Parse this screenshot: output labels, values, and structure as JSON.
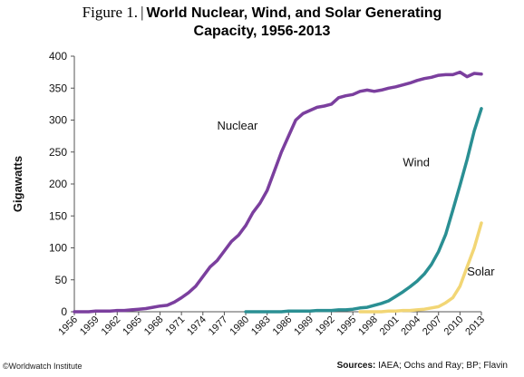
{
  "title": {
    "figure_label": "Figure 1.",
    "separator": "|",
    "line1": "World Nuclear, Wind, and Solar Generating",
    "line2": "Capacity, 1956-2013"
  },
  "footer": {
    "credit": "©Worldwatch Institute",
    "sources_label": "Sources:",
    "sources_text": "IAEA; Ochs and Ray; BP; Flavin"
  },
  "chart_data": {
    "type": "line",
    "title": "World Nuclear, Wind, and Solar Generating Capacity, 1956-2013",
    "xlabel": "",
    "ylabel": "Gigawatts",
    "xlim": [
      1956,
      2013
    ],
    "ylim": [
      0,
      400
    ],
    "y_ticks": [
      0,
      50,
      100,
      150,
      200,
      250,
      300,
      350,
      400
    ],
    "x_tick_labels": [
      "1956",
      "1959",
      "1962",
      "1965",
      "1968",
      "1971",
      "1974",
      "1977",
      "1980",
      "1983",
      "1986",
      "1989",
      "1992",
      "1995",
      "1998",
      "2001",
      "2004",
      "2007",
      "2010",
      "2013"
    ],
    "grid": false,
    "legend": "inline labels",
    "series": [
      {
        "name": "Nuclear",
        "color": "#7b3f9e",
        "x": [
          1956,
          1957,
          1958,
          1959,
          1960,
          1961,
          1962,
          1963,
          1964,
          1965,
          1966,
          1967,
          1968,
          1969,
          1970,
          1971,
          1972,
          1973,
          1974,
          1975,
          1976,
          1977,
          1978,
          1979,
          1980,
          1981,
          1982,
          1983,
          1984,
          1985,
          1986,
          1987,
          1988,
          1989,
          1990,
          1991,
          1992,
          1993,
          1994,
          1995,
          1996,
          1997,
          1998,
          1999,
          2000,
          2001,
          2002,
          2003,
          2004,
          2005,
          2006,
          2007,
          2008,
          2009,
          2010,
          2011,
          2012,
          2013
        ],
        "y": [
          0,
          0,
          0,
          1,
          1,
          1,
          2,
          2,
          3,
          4,
          5,
          7,
          9,
          10,
          15,
          22,
          30,
          40,
          55,
          70,
          80,
          95,
          110,
          120,
          135,
          155,
          170,
          190,
          220,
          250,
          275,
          300,
          310,
          315,
          320,
          322,
          325,
          335,
          338,
          340,
          345,
          347,
          345,
          347,
          350,
          352,
          355,
          358,
          362,
          365,
          367,
          370,
          371,
          371,
          375,
          368,
          373,
          372
        ]
      },
      {
        "name": "Wind",
        "color": "#2a8f93",
        "x": [
          1980,
          1981,
          1982,
          1983,
          1984,
          1985,
          1986,
          1987,
          1988,
          1989,
          1990,
          1991,
          1992,
          1993,
          1994,
          1995,
          1996,
          1997,
          1998,
          1999,
          2000,
          2001,
          2002,
          2003,
          2004,
          2005,
          2006,
          2007,
          2008,
          2009,
          2010,
          2011,
          2012,
          2013
        ],
        "y": [
          0,
          0,
          0,
          0,
          0,
          0,
          1,
          1,
          1,
          1,
          2,
          2,
          2,
          3,
          3,
          4,
          6,
          7,
          10,
          13,
          17,
          24,
          31,
          39,
          48,
          59,
          74,
          94,
          121,
          159,
          198,
          238,
          283,
          318
        ]
      },
      {
        "name": "Solar",
        "color": "#f2d675",
        "x": [
          1996,
          1997,
          1998,
          1999,
          2000,
          2001,
          2002,
          2003,
          2004,
          2005,
          2006,
          2007,
          2008,
          2009,
          2010,
          2011,
          2012,
          2013
        ],
        "y": [
          0,
          0,
          0,
          0,
          1,
          1,
          2,
          2,
          3,
          4,
          6,
          8,
          14,
          22,
          40,
          70,
          100,
          139
        ]
      }
    ]
  }
}
